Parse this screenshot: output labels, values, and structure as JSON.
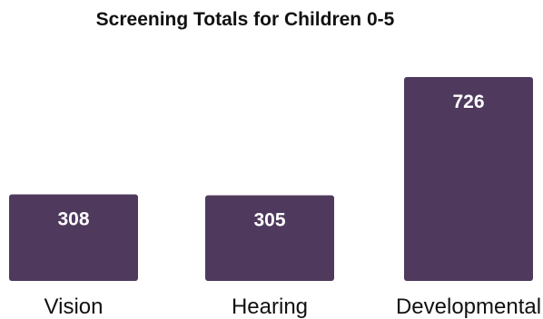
{
  "chart_data": {
    "type": "bar",
    "title": "Screening Totals for Children 0-5",
    "categories": [
      "Vision",
      "Hearing",
      "Developmental"
    ],
    "values": [
      308,
      305,
      726
    ],
    "ylim": [
      0,
      726
    ],
    "grid": false,
    "legend": "none",
    "bar_color": "#4f3a5e",
    "label_color": "#ffffff",
    "axis_label_color": "#111111"
  }
}
